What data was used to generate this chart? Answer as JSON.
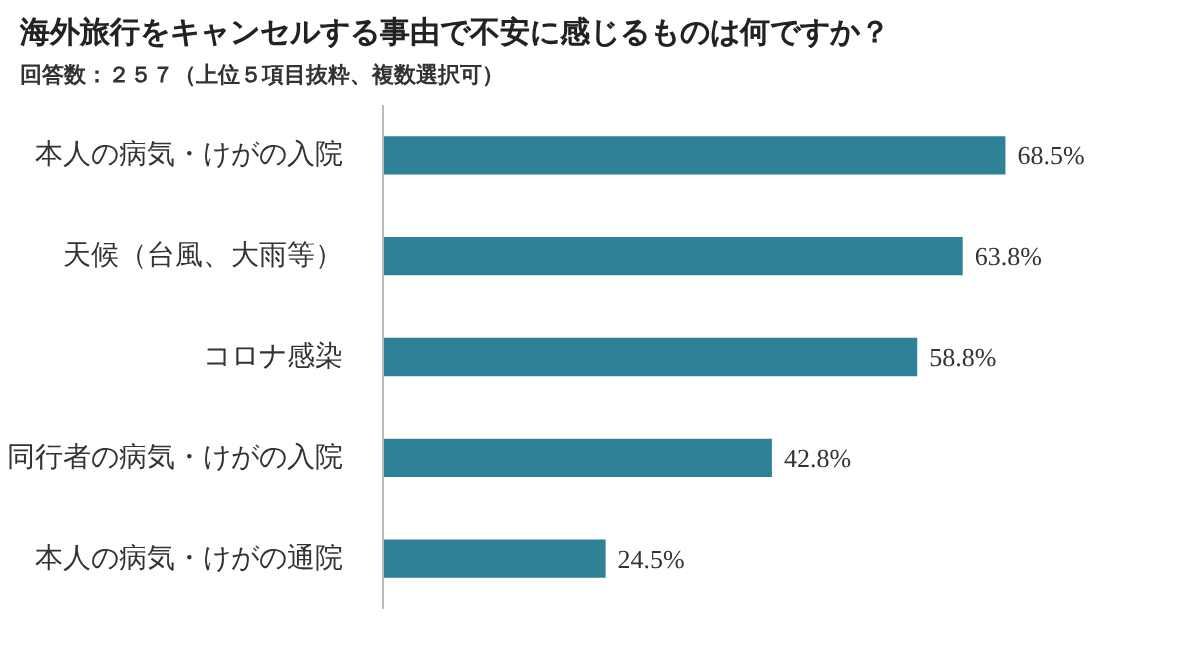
{
  "chart_data": {
    "type": "bar",
    "orientation": "horizontal",
    "title": "海外旅行をキャンセルする事由で不安に感じるものは何ですか？",
    "subtitle": "回答数：２５７（上位５項目抜粋、複数選択可）",
    "categories": [
      "本人の病気・けがの入院",
      "天候（台風、大雨等）",
      "コロナ感染",
      "同行者の病気・けがの入院",
      "本人の病気・けがの通院"
    ],
    "values": [
      68.5,
      63.8,
      58.8,
      42.8,
      24.5
    ],
    "value_labels": [
      "68.5%",
      "63.8%",
      "58.8%",
      "42.8%",
      "24.5%"
    ],
    "color": "#2e8197",
    "grid": false
  }
}
